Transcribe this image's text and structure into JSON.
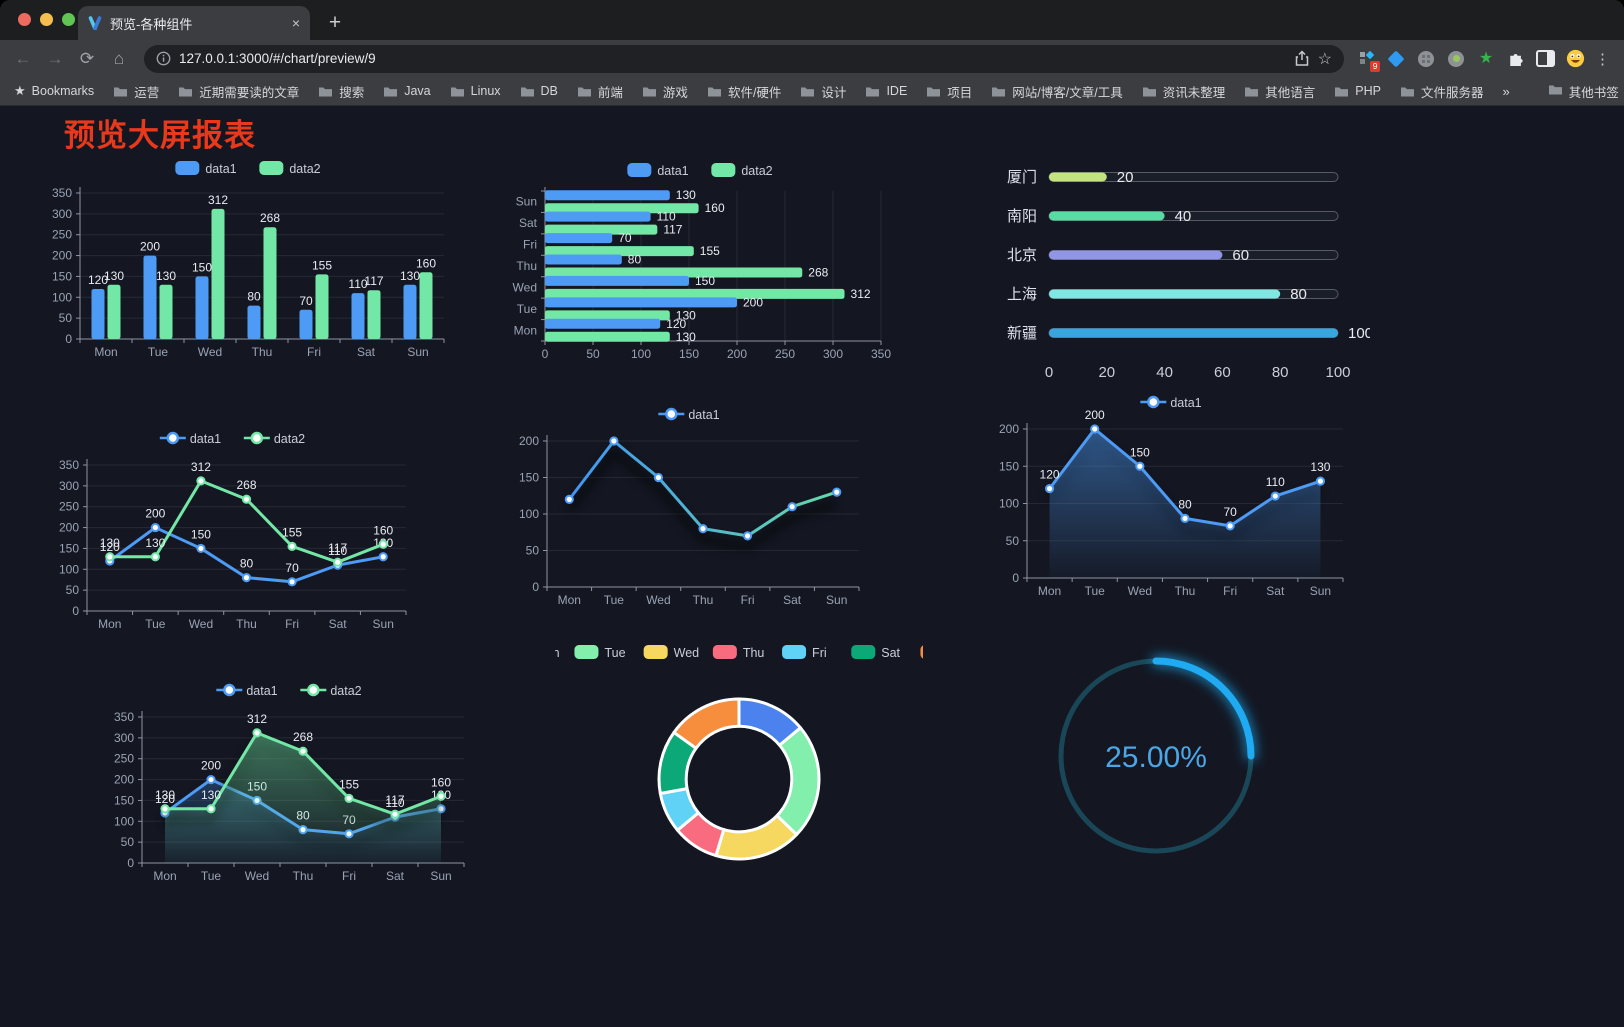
{
  "browser": {
    "tab": {
      "title": "预览-各种组件",
      "close_glyph": "×"
    },
    "new_tab_glyph": "+",
    "url": "127.0.0.1:3000/#/chart/preview/9",
    "icons": {
      "back": "←",
      "forward": "→",
      "reload": "⟳",
      "home": "⌂",
      "star": "☆",
      "menu": "⋮",
      "green_star": "★",
      "overflow_chevron": "»"
    },
    "extension_badge": "9",
    "bookmarks_label": "Bookmarks",
    "bookmarks": [
      "运营",
      "近期需要读的文章",
      "搜索",
      "Java",
      "Linux",
      "DB",
      "前端",
      "游戏",
      "软件/硬件",
      "设计",
      "IDE",
      "项目",
      "网站/博客/文章/工具",
      "资讯未整理",
      "其他语言",
      "PHP",
      "文件服务器"
    ],
    "other_bookmarks": "其他书签"
  },
  "page": {
    "title": "预览大屏报表",
    "title_color": "#e8391d",
    "background": "#141722"
  },
  "chart_data": [
    {
      "id": "bar-vertical",
      "type": "bar",
      "categories": [
        "Mon",
        "Tue",
        "Wed",
        "Thu",
        "Fri",
        "Sat",
        "Sun"
      ],
      "series": [
        {
          "name": "data1",
          "color": "#4d9bf5",
          "values": [
            120,
            200,
            150,
            80,
            70,
            110,
            130
          ]
        },
        {
          "name": "data2",
          "color": "#73e8a6",
          "values": [
            130,
            130,
            312,
            268,
            155,
            117,
            160
          ]
        }
      ],
      "ylim": [
        0,
        350
      ],
      "ystep": 50,
      "labels": true,
      "grid": true,
      "legend_position": "top"
    },
    {
      "id": "bar-horizontal",
      "type": "bar-horizontal",
      "categories": [
        "Mon",
        "Tue",
        "Wed",
        "Thu",
        "Fri",
        "Sat",
        "Sun"
      ],
      "series": [
        {
          "name": "data1",
          "color": "#4d9bf5",
          "values": [
            120,
            200,
            150,
            80,
            70,
            110,
            130
          ]
        },
        {
          "name": "data2",
          "color": "#73e8a6",
          "values": [
            130,
            130,
            312,
            268,
            155,
            117,
            160
          ]
        }
      ],
      "xlim": [
        0,
        350
      ],
      "xstep": 50,
      "labels": true,
      "grid": true,
      "legend_position": "top"
    },
    {
      "id": "progress-bars",
      "type": "progress",
      "items": [
        {
          "label": "厦门",
          "value": 20,
          "color": "#c3e380"
        },
        {
          "label": "南阳",
          "value": 40,
          "color": "#58dca4"
        },
        {
          "label": "北京",
          "value": 60,
          "color": "#9095e6"
        },
        {
          "label": "上海",
          "value": 80,
          "color": "#7fe6e2"
        },
        {
          "label": "新疆",
          "value": 100,
          "color": "#38a5df"
        }
      ],
      "max": 100,
      "ticks": [
        0,
        20,
        40,
        60,
        80,
        100
      ]
    },
    {
      "id": "line-two-series",
      "type": "line",
      "categories": [
        "Mon",
        "Tue",
        "Wed",
        "Thu",
        "Fri",
        "Sat",
        "Sun"
      ],
      "series": [
        {
          "name": "data1",
          "color": "#4d9bf5",
          "values": [
            120,
            200,
            150,
            80,
            70,
            110,
            130
          ]
        },
        {
          "name": "data2",
          "color": "#73e8a6",
          "values": [
            130,
            130,
            312,
            268,
            155,
            117,
            160
          ]
        }
      ],
      "ylim": [
        0,
        350
      ],
      "ystep": 50,
      "labels": true,
      "markers": true,
      "legend_position": "top"
    },
    {
      "id": "line-gradient",
      "type": "line",
      "categories": [
        "Mon",
        "Tue",
        "Wed",
        "Thu",
        "Fri",
        "Sat",
        "Sun"
      ],
      "series": [
        {
          "name": "data1",
          "color": "#4d9bf5",
          "gradient": [
            "#3e8ef7",
            "#67e0a3"
          ],
          "values": [
            120,
            200,
            150,
            80,
            70,
            110,
            130
          ]
        }
      ],
      "ylim": [
        0,
        200
      ],
      "ystep": 50,
      "labels": false,
      "markers": true,
      "shadow": true,
      "legend_position": "top"
    },
    {
      "id": "area-single",
      "type": "line",
      "categories": [
        "Mon",
        "Tue",
        "Wed",
        "Thu",
        "Fri",
        "Sat",
        "Sun"
      ],
      "series": [
        {
          "name": "data1",
          "color": "#4d9bf5",
          "area": true,
          "values": [
            120,
            200,
            150,
            80,
            70,
            110,
            130
          ]
        }
      ],
      "ylim": [
        0,
        200
      ],
      "ystep": 50,
      "labels": true,
      "markers": true,
      "shadow": true,
      "legend_position": "top"
    },
    {
      "id": "area-two-series",
      "type": "line",
      "categories": [
        "Mon",
        "Tue",
        "Wed",
        "Thu",
        "Fri",
        "Sat",
        "Sun"
      ],
      "series": [
        {
          "name": "data1",
          "color": "#4d9bf5",
          "area": true,
          "values": [
            120,
            200,
            150,
            80,
            70,
            110,
            130
          ]
        },
        {
          "name": "data2",
          "color": "#73e8a6",
          "area": true,
          "values": [
            130,
            130,
            312,
            268,
            155,
            117,
            160
          ]
        }
      ],
      "ylim": [
        0,
        350
      ],
      "ystep": 50,
      "labels": true,
      "markers": true,
      "shadow": true,
      "legend_position": "top"
    },
    {
      "id": "donut-week",
      "type": "pie",
      "items": [
        {
          "name": "Mon",
          "value": 120,
          "color": "#4b82ee"
        },
        {
          "name": "Tue",
          "value": 200,
          "color": "#82efad"
        },
        {
          "name": "Wed",
          "value": 150,
          "color": "#f6d860"
        },
        {
          "name": "Thu",
          "value": 80,
          "color": "#f96c7f"
        },
        {
          "name": "Fri",
          "value": 70,
          "color": "#5fd2f6"
        },
        {
          "name": "Sat",
          "value": 110,
          "color": "#0ca878"
        },
        {
          "name": "Sun",
          "value": 130,
          "color": "#f78e3d"
        }
      ],
      "inner_radius_ratio": 0.66,
      "legend_position": "top"
    },
    {
      "id": "gauge-percent",
      "type": "gauge",
      "value": 25,
      "max": 100,
      "display": "25.00%",
      "color": "#1faaf2",
      "track_color": "#1a4757",
      "text_color": "#4ba6e6"
    }
  ]
}
